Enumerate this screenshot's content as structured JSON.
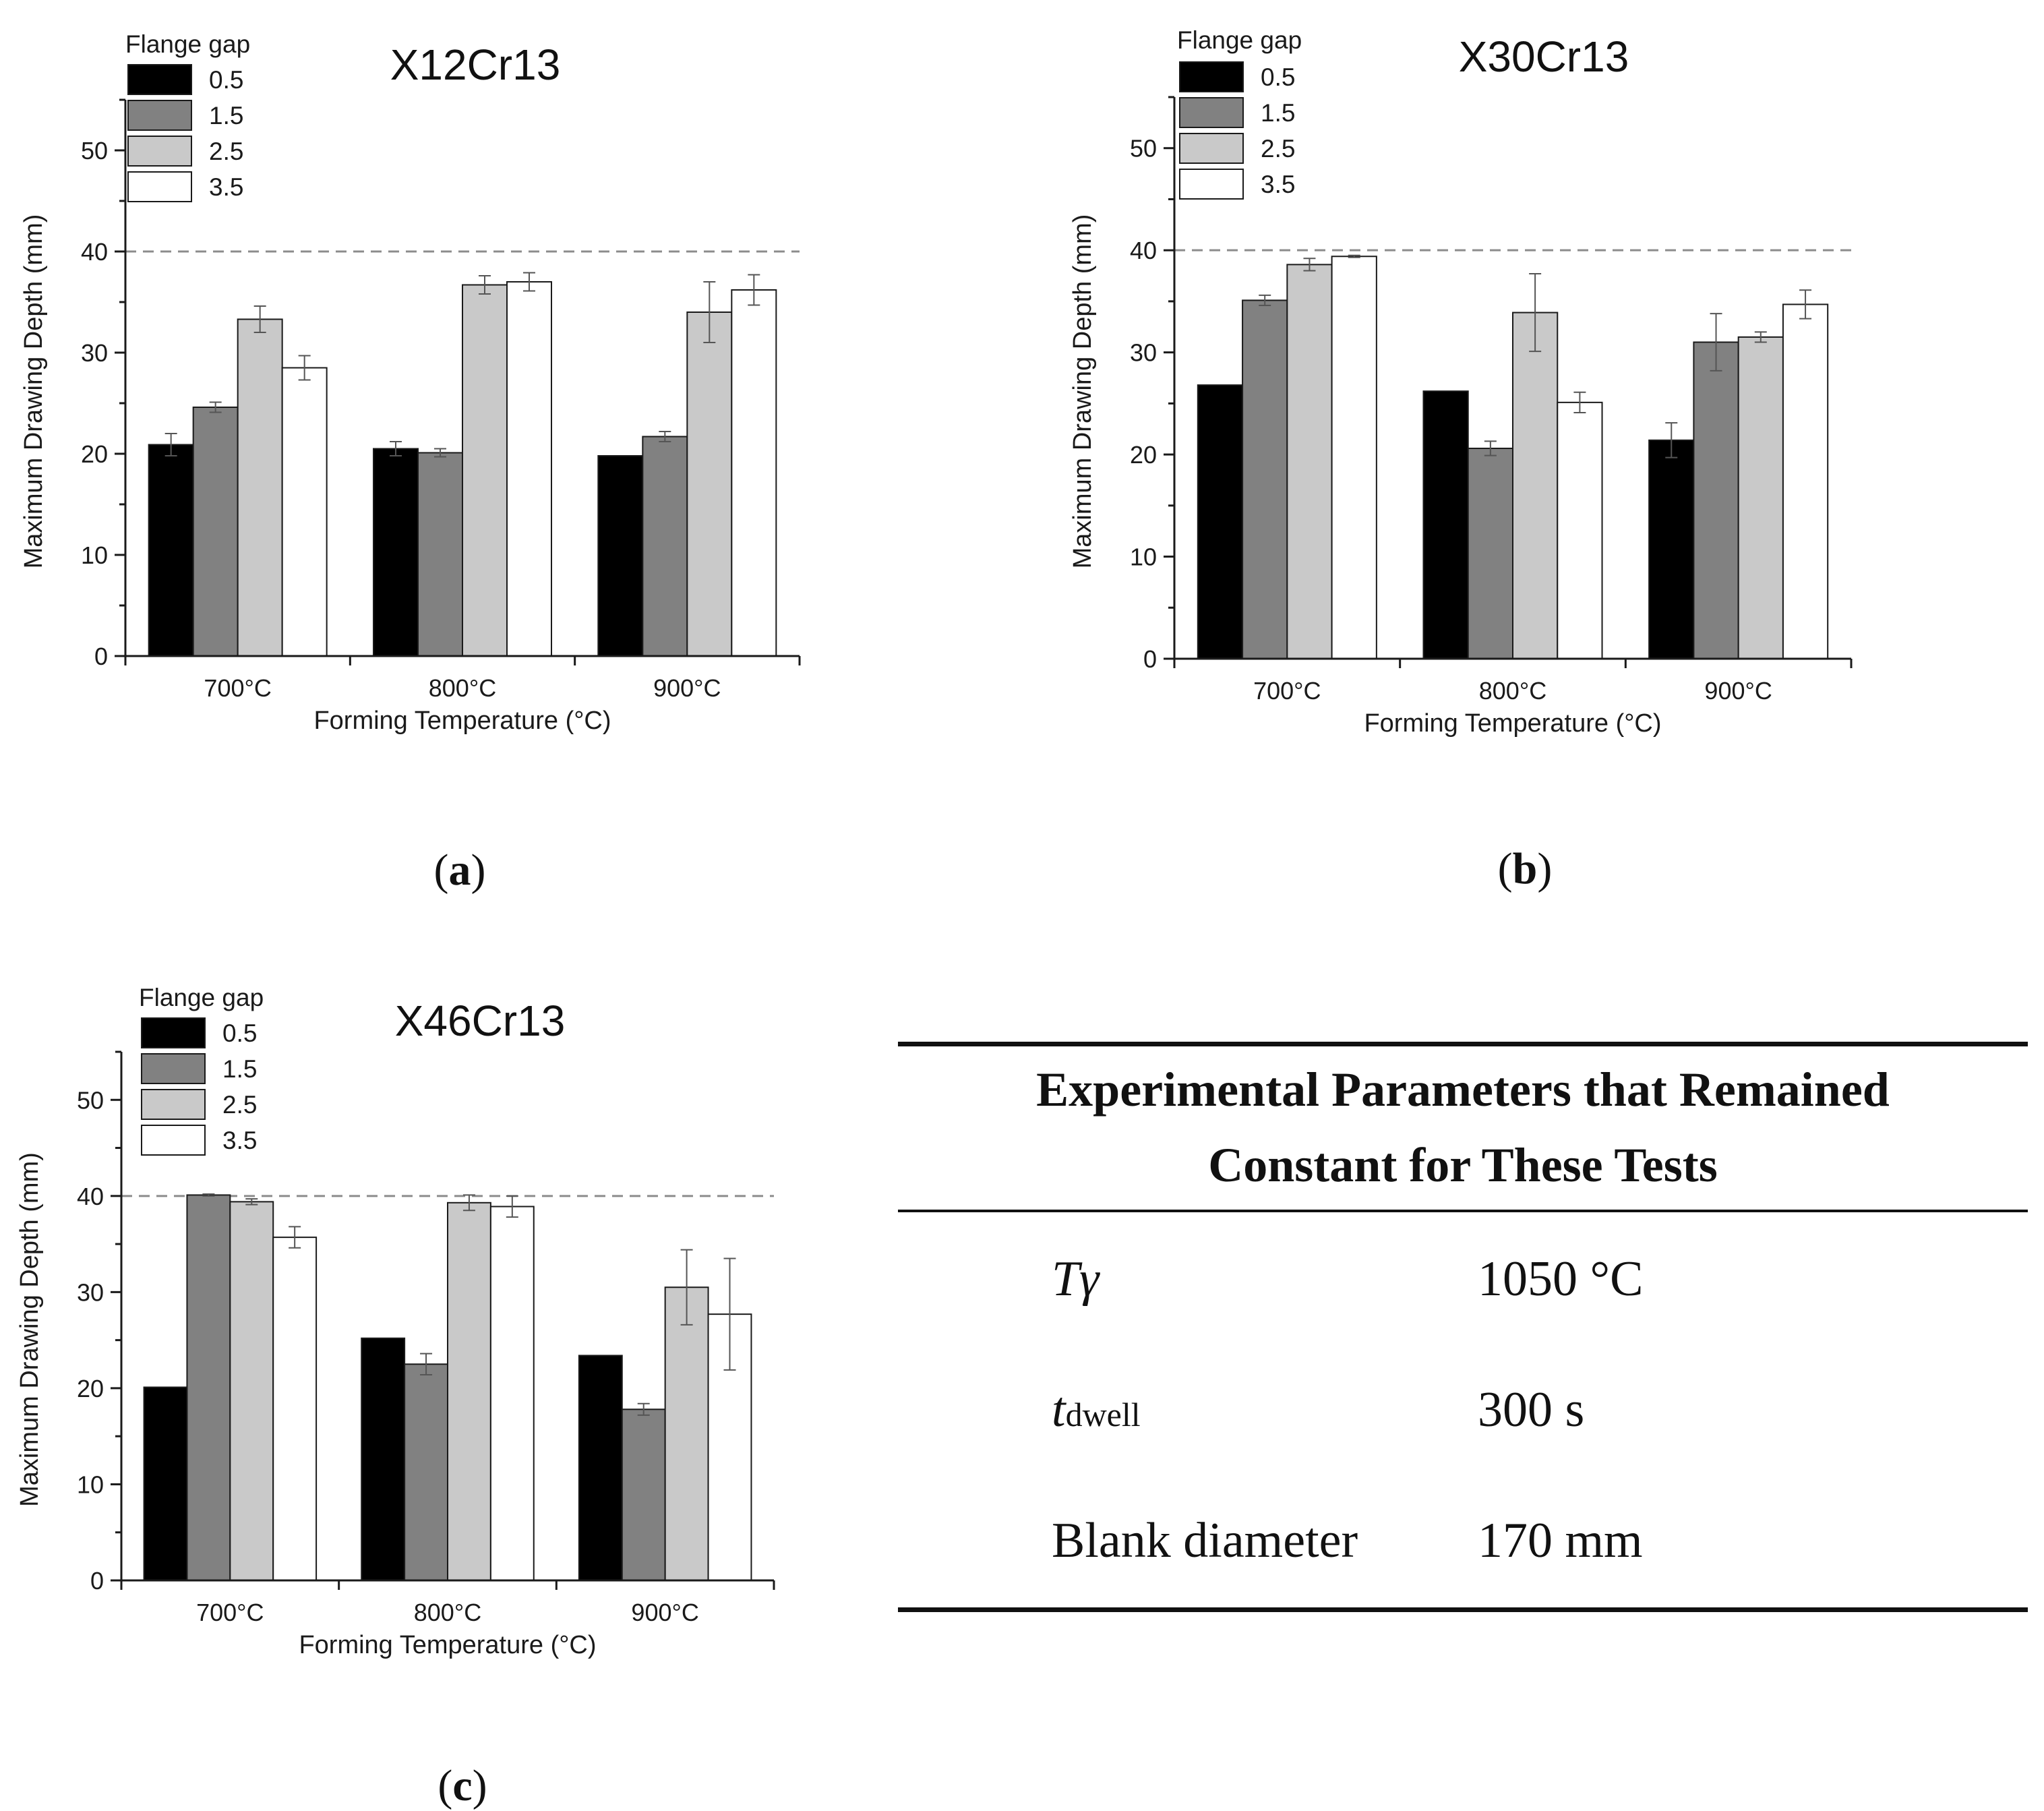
{
  "chart_data": [
    {
      "type": "bar",
      "panel_label": "a",
      "title": "X12Cr13",
      "xlabel": "Forming Temperature (°C)",
      "ylabel": "Maximum Drawing Depth (mm)",
      "categories": [
        "700°C",
        "800°C",
        "900°C"
      ],
      "ylim": [
        0,
        55
      ],
      "yticks": [
        0,
        10,
        20,
        30,
        40,
        50
      ],
      "reference_line": 40,
      "legend_title": "Flange gap",
      "legend_position": "top-left",
      "series": [
        {
          "name": "0.5",
          "values": [
            20.9,
            20.5,
            19.8
          ],
          "errors": [
            1.1,
            0.7,
            0.0
          ]
        },
        {
          "name": "1.5",
          "values": [
            24.6,
            20.1,
            21.7
          ],
          "errors": [
            0.5,
            0.4,
            0.5
          ]
        },
        {
          "name": "2.5",
          "values": [
            33.3,
            36.7,
            34.0
          ],
          "errors": [
            1.3,
            0.9,
            3.0
          ]
        },
        {
          "name": "3.5",
          "values": [
            28.5,
            37.0,
            36.2
          ],
          "errors": [
            1.2,
            0.9,
            1.5
          ]
        }
      ]
    },
    {
      "type": "bar",
      "panel_label": "b",
      "title": "X30Cr13",
      "xlabel": "Forming Temperature (°C)",
      "ylabel": "Maximum Drawing Depth (mm)",
      "categories": [
        "700°C",
        "800°C",
        "900°C"
      ],
      "ylim": [
        0,
        55
      ],
      "yticks": [
        0,
        10,
        20,
        30,
        40,
        50
      ],
      "reference_line": 40,
      "legend_title": "Flange gap",
      "legend_position": "top-left",
      "series": [
        {
          "name": "0.5",
          "values": [
            26.8,
            26.2,
            21.4
          ],
          "errors": [
            0.0,
            0.0,
            1.7
          ]
        },
        {
          "name": "1.5",
          "values": [
            35.1,
            20.6,
            31.0
          ],
          "errors": [
            0.5,
            0.7,
            2.8
          ]
        },
        {
          "name": "2.5",
          "values": [
            38.6,
            33.9,
            31.5
          ],
          "errors": [
            0.6,
            3.8,
            0.5
          ]
        },
        {
          "name": "3.5",
          "values": [
            39.4,
            25.1,
            34.7
          ],
          "errors": [
            0.1,
            1.0,
            1.4
          ]
        }
      ]
    },
    {
      "type": "bar",
      "panel_label": "c",
      "title": "X46Cr13",
      "xlabel": "Forming Temperature (°C)",
      "ylabel": "Maximum Drawing Depth (mm)",
      "categories": [
        "700°C",
        "800°C",
        "900°C"
      ],
      "ylim": [
        0,
        55
      ],
      "yticks": [
        0,
        10,
        20,
        30,
        40,
        50
      ],
      "reference_line": 40,
      "legend_title": "Flange gap",
      "legend_position": "top-left",
      "series": [
        {
          "name": "0.5",
          "values": [
            20.1,
            25.2,
            23.4
          ],
          "errors": [
            0.0,
            0.0,
            0.0
          ]
        },
        {
          "name": "1.5",
          "values": [
            40.1,
            22.5,
            17.8
          ],
          "errors": [
            0.1,
            1.1,
            0.6
          ]
        },
        {
          "name": "2.5",
          "values": [
            39.4,
            39.3,
            30.5
          ],
          "errors": [
            0.3,
            0.8,
            3.9
          ]
        },
        {
          "name": "3.5",
          "values": [
            35.7,
            38.9,
            27.7
          ],
          "errors": [
            1.1,
            1.1,
            5.8
          ]
        }
      ]
    }
  ],
  "series_colors": [
    "#000000",
    "#818181",
    "#c9c9c9",
    "#ffffff"
  ],
  "table": {
    "heading_line1": "Experimental Parameters that Remained",
    "heading_line2": "Constant for These Tests",
    "rows": [
      {
        "param_main": "Tγ",
        "param_sub": "",
        "value": "1050 °C"
      },
      {
        "param_main": "t",
        "param_sub": "dwell",
        "value": "300 s"
      },
      {
        "param_main": "Blank diameter",
        "param_sub": "",
        "value": "170 mm"
      }
    ]
  }
}
